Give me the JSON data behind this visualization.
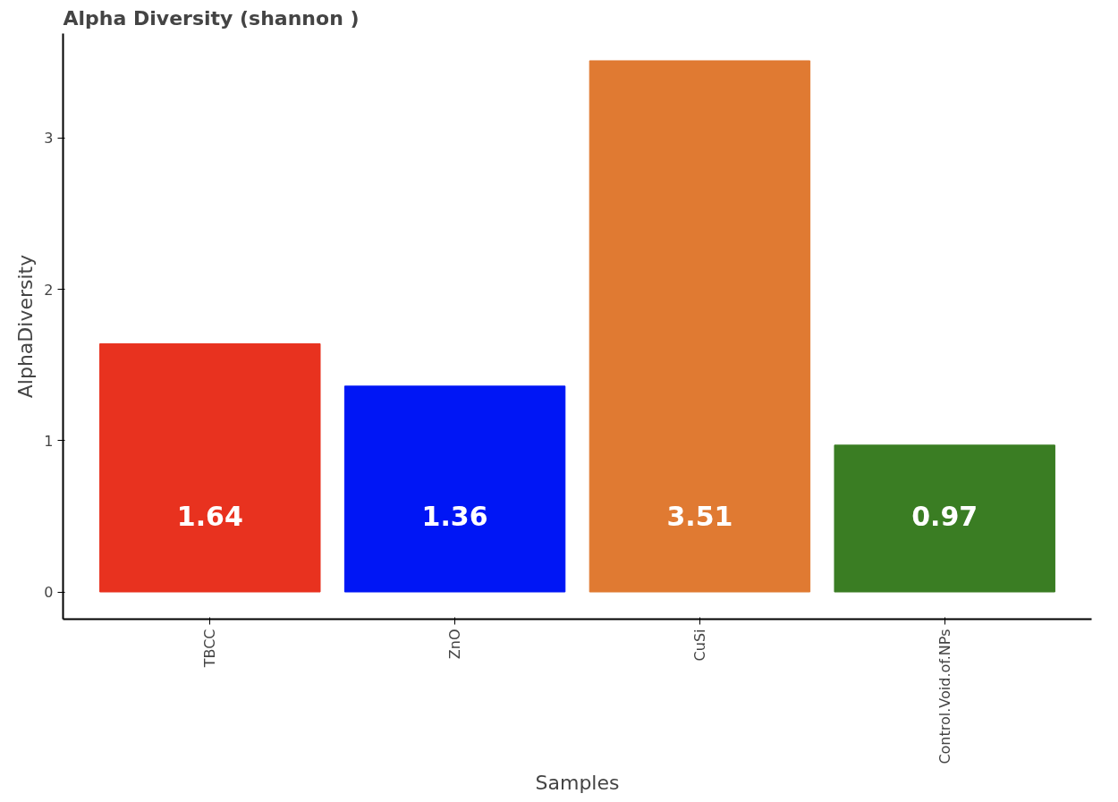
{
  "chart_data": {
    "type": "bar",
    "title": "Alpha Diversity (shannon )",
    "xlabel": "Samples",
    "ylabel": "AlphaDiversity",
    "categories": [
      "TBCC",
      "ZnO",
      "CuSi",
      "Control.Void.of.NPs"
    ],
    "values": [
      1.64,
      1.36,
      3.51,
      0.97
    ],
    "colors": [
      "#e8321f",
      "#0016f5",
      "#e07a32",
      "#3a7d23"
    ],
    "ylim": [
      -0.18,
      3.69
    ],
    "yticks": [
      0,
      1,
      2,
      3
    ],
    "grid": false,
    "data_labels": true
  }
}
